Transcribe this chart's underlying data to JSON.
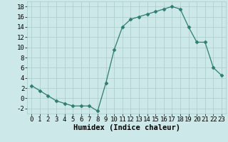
{
  "x": [
    0,
    1,
    2,
    3,
    4,
    5,
    6,
    7,
    8,
    9,
    10,
    11,
    12,
    13,
    14,
    15,
    16,
    17,
    18,
    19,
    20,
    21,
    22,
    23
  ],
  "y": [
    2.5,
    1.5,
    0.5,
    -0.5,
    -1.0,
    -1.5,
    -1.5,
    -1.5,
    -2.5,
    3.0,
    9.5,
    14.0,
    15.5,
    16.0,
    16.5,
    17.0,
    17.5,
    18.0,
    17.5,
    14.0,
    11.0,
    11.0,
    6.0,
    4.5
  ],
  "line_color": "#2e7d72",
  "marker": "D",
  "marker_size": 2.5,
  "bg_color": "#cce8e8",
  "grid_color": "#aacaca",
  "xlabel": "Humidex (Indice chaleur)",
  "xlim": [
    -0.5,
    23.5
  ],
  "ylim": [
    -3,
    19
  ],
  "yticks": [
    -2,
    0,
    2,
    4,
    6,
    8,
    10,
    12,
    14,
    16,
    18
  ],
  "xticks": [
    0,
    1,
    2,
    3,
    4,
    5,
    6,
    7,
    8,
    9,
    10,
    11,
    12,
    13,
    14,
    15,
    16,
    17,
    18,
    19,
    20,
    21,
    22,
    23
  ],
  "xlabel_fontsize": 7.5,
  "tick_fontsize": 6.5
}
